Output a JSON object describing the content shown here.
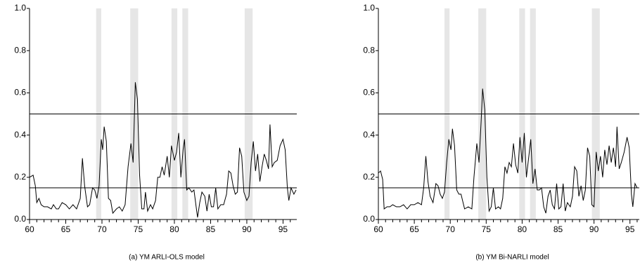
{
  "chart_data": [
    {
      "type": "line",
      "title": "(a) YM ARLI-OLS model",
      "xlim": [
        60,
        96.9
      ],
      "ylim": [
        0,
        1
      ],
      "xticks": [
        60,
        65,
        70,
        75,
        80,
        85,
        90,
        95
      ],
      "xminorticks": [
        61,
        62,
        63,
        64,
        66,
        67,
        68,
        69,
        71,
        72,
        73,
        74,
        76,
        77,
        78,
        79,
        81,
        82,
        83,
        84,
        86,
        87,
        88,
        89,
        91,
        92,
        93,
        94,
        96
      ],
      "yticks": [
        {
          "value": 0,
          "label": "0.0"
        },
        0.2,
        0.4,
        0.6,
        0.8,
        {
          "value": 1,
          "label": "1.0"
        }
      ],
      "hlines": [
        0.5,
        0.15
      ],
      "shaded_regions": [
        [
          69.2,
          69.9
        ],
        [
          73.9,
          75.0
        ],
        [
          79.6,
          80.4
        ],
        [
          81.1,
          81.9
        ],
        [
          89.7,
          90.8
        ]
      ],
      "shade_color": "#e6e6e6",
      "color": "#000000",
      "x": [
        60,
        60.5,
        60.8,
        61,
        61.3,
        61.6,
        62,
        62.5,
        63,
        63.3,
        63.7,
        64,
        64.5,
        65,
        65.5,
        66,
        66.5,
        67,
        67.3,
        67.6,
        68,
        68.3,
        68.7,
        69,
        69.3,
        69.6,
        69.9,
        70.1,
        70.3,
        70.6,
        70.9,
        71.2,
        71.5,
        72,
        72.4,
        72.8,
        73.2,
        73.6,
        74,
        74.3,
        74.6,
        74.9,
        75.2,
        75.5,
        75.8,
        76,
        76.3,
        76.7,
        77,
        77.4,
        77.7,
        78,
        78.3,
        78.6,
        79,
        79.3,
        79.6,
        80,
        80.3,
        80.6,
        80.9,
        81.2,
        81.4,
        81.7,
        82,
        82.4,
        82.7,
        83,
        83.2,
        83.5,
        83.8,
        84.2,
        84.5,
        84.8,
        85.1,
        85.4,
        85.7,
        86,
        86.4,
        86.8,
        87.2,
        87.5,
        87.8,
        88.1,
        88.4,
        88.7,
        89,
        89.3,
        89.6,
        90,
        90.3,
        90.6,
        90.9,
        91.2,
        91.5,
        91.8,
        92.1,
        92.4,
        92.7,
        93,
        93.2,
        93.5,
        93.8,
        94.2,
        94.6,
        95,
        95.3,
        95.6,
        95.8,
        96.1,
        96.5,
        96.8
      ],
      "values": [
        0.2,
        0.21,
        0.16,
        0.08,
        0.1,
        0.07,
        0.06,
        0.06,
        0.05,
        0.07,
        0.05,
        0.05,
        0.08,
        0.07,
        0.05,
        0.07,
        0.05,
        0.1,
        0.29,
        0.16,
        0.06,
        0.07,
        0.15,
        0.14,
        0.1,
        0.16,
        0.38,
        0.33,
        0.44,
        0.37,
        0.1,
        0.09,
        0.03,
        0.05,
        0.06,
        0.04,
        0.07,
        0.25,
        0.36,
        0.27,
        0.65,
        0.57,
        0.21,
        0.05,
        0.05,
        0.13,
        0.04,
        0.07,
        0.05,
        0.09,
        0.2,
        0.2,
        0.25,
        0.21,
        0.3,
        0.2,
        0.35,
        0.28,
        0.32,
        0.41,
        0.2,
        0.33,
        0.38,
        0.14,
        0.15,
        0.13,
        0.14,
        0.06,
        0.01,
        0.08,
        0.13,
        0.11,
        0.04,
        0.12,
        0.06,
        0.06,
        0.15,
        0.05,
        0.07,
        0.07,
        0.12,
        0.23,
        0.22,
        0.16,
        0.12,
        0.13,
        0.34,
        0.3,
        0.13,
        0.09,
        0.11,
        0.27,
        0.37,
        0.23,
        0.31,
        0.18,
        0.25,
        0.31,
        0.28,
        0.24,
        0.45,
        0.25,
        0.27,
        0.28,
        0.35,
        0.38,
        0.33,
        0.15,
        0.09,
        0.15,
        0.12,
        0.14
      ]
    },
    {
      "type": "line",
      "title": "(b) YM Bi-NARLI model",
      "xlim": [
        60,
        96.3
      ],
      "ylim": [
        0,
        1
      ],
      "xticks": [
        60,
        65,
        70,
        75,
        80,
        85,
        90,
        95
      ],
      "xminorticks": [
        61,
        62,
        63,
        64,
        66,
        67,
        68,
        69,
        71,
        72,
        73,
        74,
        76,
        77,
        78,
        79,
        81,
        82,
        83,
        84,
        86,
        87,
        88,
        89,
        91,
        92,
        93,
        94,
        96
      ],
      "yticks": [
        {
          "value": 0,
          "label": "0.0"
        },
        0.2,
        0.4,
        0.6,
        0.8,
        {
          "value": 1,
          "label": "1.0"
        }
      ],
      "hlines": [
        0.5,
        0.15
      ],
      "shaded_regions": [
        [
          69.2,
          69.9
        ],
        [
          73.9,
          75.0
        ],
        [
          79.6,
          80.4
        ],
        [
          81.1,
          81.9
        ],
        [
          89.7,
          90.8
        ]
      ],
      "shade_color": "#e6e6e6",
      "color": "#000000",
      "x": [
        60,
        60.3,
        60.6,
        60.8,
        61.2,
        61.6,
        62,
        62.5,
        63,
        63.5,
        64,
        64.5,
        65,
        65.5,
        66,
        66.3,
        66.6,
        66.9,
        67.2,
        67.6,
        68,
        68.3,
        68.6,
        68.9,
        69.2,
        69.5,
        69.8,
        70.1,
        70.3,
        70.6,
        70.9,
        71.2,
        71.5,
        72,
        72.5,
        73,
        73.3,
        73.7,
        74,
        74.3,
        74.5,
        74.8,
        75.1,
        75.4,
        75.7,
        76,
        76.3,
        76.7,
        77,
        77.3,
        77.6,
        77.9,
        78.2,
        78.5,
        78.8,
        79.1,
        79.4,
        79.7,
        80,
        80.3,
        80.6,
        80.9,
        81.2,
        81.5,
        81.8,
        82.1,
        82.4,
        82.7,
        83,
        83.3,
        83.6,
        83.9,
        84.2,
        84.5,
        84.8,
        85.1,
        85.4,
        85.7,
        86,
        86.3,
        86.7,
        87,
        87.3,
        87.6,
        87.9,
        88.2,
        88.5,
        88.8,
        89.1,
        89.4,
        89.7,
        90,
        90.3,
        90.6,
        90.9,
        91.2,
        91.5,
        91.8,
        92.1,
        92.4,
        92.7,
        93,
        93.2,
        93.5,
        93.8,
        94.2,
        94.6,
        94.9,
        95.2,
        95.4,
        95.7,
        96
      ],
      "values": [
        0.22,
        0.23,
        0.19,
        0.05,
        0.06,
        0.06,
        0.07,
        0.06,
        0.06,
        0.07,
        0.05,
        0.07,
        0.07,
        0.08,
        0.07,
        0.15,
        0.3,
        0.18,
        0.11,
        0.08,
        0.17,
        0.16,
        0.12,
        0.1,
        0.13,
        0.27,
        0.38,
        0.33,
        0.43,
        0.35,
        0.14,
        0.12,
        0.12,
        0.05,
        0.06,
        0.05,
        0.2,
        0.36,
        0.27,
        0.47,
        0.62,
        0.52,
        0.2,
        0.04,
        0.06,
        0.15,
        0.05,
        0.06,
        0.05,
        0.1,
        0.25,
        0.22,
        0.27,
        0.25,
        0.36,
        0.26,
        0.22,
        0.39,
        0.27,
        0.41,
        0.2,
        0.29,
        0.38,
        0.17,
        0.24,
        0.14,
        0.14,
        0.15,
        0.06,
        0.03,
        0.11,
        0.14,
        0.07,
        0.05,
        0.17,
        0.05,
        0.06,
        0.17,
        0.04,
        0.08,
        0.06,
        0.11,
        0.25,
        0.23,
        0.11,
        0.16,
        0.09,
        0.14,
        0.34,
        0.3,
        0.07,
        0.06,
        0.32,
        0.23,
        0.3,
        0.2,
        0.33,
        0.26,
        0.35,
        0.27,
        0.34,
        0.25,
        0.44,
        0.24,
        0.27,
        0.32,
        0.39,
        0.34,
        0.12,
        0.06,
        0.17,
        0.15
      ]
    }
  ]
}
